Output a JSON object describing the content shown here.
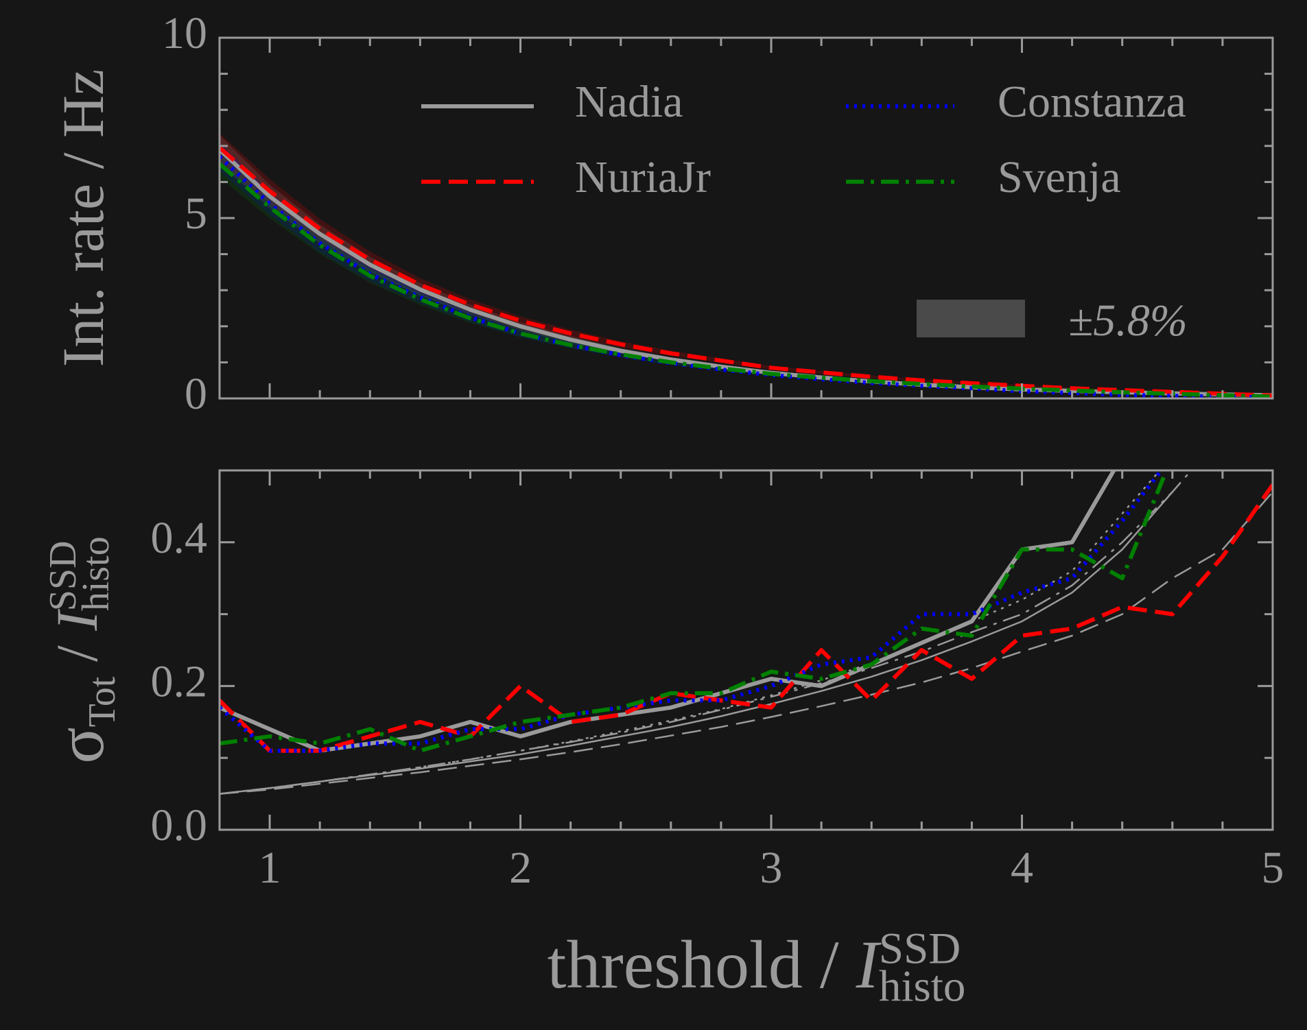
{
  "chart_data": [
    {
      "type": "line",
      "ylabel": "Int. rate / Hz",
      "x": [
        0.8,
        1.0,
        1.2,
        1.4,
        1.6,
        1.8,
        2.0,
        2.2,
        2.4,
        2.6,
        2.8,
        3.0,
        3.2,
        3.4,
        3.6,
        3.8,
        4.0,
        4.2,
        4.4,
        4.6,
        4.8,
        5.0
      ],
      "series": [
        {
          "name": "Nadia",
          "color": "#9a9a9a",
          "dash": "solid",
          "values": [
            6.9,
            5.6,
            4.56,
            3.71,
            3.02,
            2.46,
            2.0,
            1.63,
            1.32,
            1.08,
            0.88,
            0.71,
            0.58,
            0.47,
            0.38,
            0.31,
            0.25,
            0.21,
            0.17,
            0.14,
            0.11,
            0.09
          ]
        },
        {
          "name": "NuriaJr",
          "color": "#ff0000",
          "dash": "dashed",
          "values": [
            6.95,
            5.75,
            4.7,
            3.85,
            3.15,
            2.6,
            2.15,
            1.8,
            1.5,
            1.25,
            1.05,
            0.85,
            0.72,
            0.6,
            0.5,
            0.42,
            0.35,
            0.28,
            0.23,
            0.18,
            0.13,
            0.08
          ]
        },
        {
          "name": "Constanza",
          "color": "#0000ff",
          "dash": "dotted",
          "values": [
            6.7,
            5.4,
            4.3,
            3.45,
            2.8,
            2.25,
            1.8,
            1.48,
            1.2,
            0.98,
            0.8,
            0.65,
            0.53,
            0.43,
            0.35,
            0.28,
            0.2,
            0.15,
            0.1,
            0.07,
            0.05,
            0.03
          ]
        },
        {
          "name": "Svenja",
          "color": "#008000",
          "dash": "dashdot",
          "values": [
            6.5,
            5.3,
            4.25,
            3.4,
            2.75,
            2.22,
            1.8,
            1.48,
            1.22,
            1.0,
            0.83,
            0.68,
            0.57,
            0.48,
            0.4,
            0.33,
            0.27,
            0.22,
            0.17,
            0.13,
            0.09,
            0.05
          ]
        }
      ],
      "band": {
        "value": 5.8,
        "label": "±5.8%",
        "color": "#4a4a4a"
      },
      "xlim": [
        0.8,
        5
      ],
      "ylim": [
        0,
        10
      ],
      "xticks": [
        1,
        2,
        3,
        4,
        5
      ],
      "xtick_labels": false,
      "xminor_ticks": [
        1.2,
        1.4,
        1.6,
        1.8,
        2.2,
        2.4,
        2.6,
        2.8,
        3.2,
        3.4,
        3.6,
        3.8,
        4.2,
        4.4,
        4.6,
        4.8
      ],
      "yticks": [
        0,
        5,
        10
      ],
      "yminor_ticks": [
        1,
        2,
        3,
        4,
        6,
        7,
        8,
        9
      ],
      "legend": "upper right"
    },
    {
      "type": "line",
      "ylabel": {
        "symbol": "σ",
        "symbol_sub": "Tot",
        "text": " / ",
        "var": "I",
        "sub": "histo",
        "sup": "SSD"
      },
      "xlabel": {
        "text": "threshold / ",
        "var": "I",
        "sub": "histo",
        "sup": "SSD"
      },
      "x": [
        0.8,
        1.0,
        1.2,
        1.4,
        1.6,
        1.8,
        2.0,
        2.2,
        2.4,
        2.6,
        2.8,
        3.0,
        3.2,
        3.4,
        3.6,
        3.8,
        4.0,
        4.2,
        4.4,
        4.6,
        4.8,
        5.0
      ],
      "series": [
        {
          "name": "Nadia",
          "color": "#9a9a9a",
          "dash": "solid",
          "values": [
            0.17,
            0.14,
            0.11,
            0.12,
            0.13,
            0.15,
            0.13,
            0.15,
            0.16,
            0.17,
            0.19,
            0.21,
            0.2,
            0.23,
            0.26,
            0.29,
            0.39,
            0.4,
            0.52,
            null,
            null,
            null
          ]
        },
        {
          "name": "NuriaJr",
          "color": "#ff0000",
          "dash": "dashed",
          "values": [
            0.18,
            0.11,
            0.11,
            0.13,
            0.15,
            0.13,
            0.2,
            0.15,
            0.16,
            0.19,
            0.18,
            0.17,
            0.25,
            0.18,
            0.25,
            0.21,
            0.27,
            0.28,
            0.31,
            0.3,
            0.38,
            0.48
          ]
        },
        {
          "name": "Constanza",
          "color": "#0000ff",
          "dash": "dotted",
          "values": [
            0.17,
            0.11,
            0.11,
            0.12,
            0.12,
            0.14,
            0.14,
            0.16,
            0.17,
            0.18,
            0.18,
            0.2,
            0.23,
            0.24,
            0.3,
            0.3,
            0.33,
            0.35,
            0.43,
            0.52,
            null,
            null
          ]
        },
        {
          "name": "Svenja",
          "color": "#008000",
          "dash": "dashdot",
          "values": [
            0.12,
            0.13,
            0.12,
            0.14,
            0.11,
            0.13,
            0.15,
            0.16,
            0.17,
            0.19,
            0.19,
            0.22,
            0.21,
            0.23,
            0.28,
            0.27,
            0.39,
            0.39,
            0.35,
            0.52,
            null,
            null
          ]
        }
      ],
      "reference_series": [
        {
          "color": "#9a9a9a",
          "dash": "solid",
          "values": [
            0.05,
            0.058,
            0.067,
            0.076,
            0.085,
            0.095,
            0.105,
            0.117,
            0.13,
            0.143,
            0.158,
            0.175,
            0.193,
            0.213,
            0.236,
            0.262,
            0.29,
            0.33,
            0.39,
            0.47,
            null,
            null
          ]
        },
        {
          "color": "#9a9a9a",
          "dash": "dashed",
          "values": [
            0.05,
            0.056,
            0.064,
            0.072,
            0.08,
            0.089,
            0.098,
            0.108,
            0.119,
            0.131,
            0.143,
            0.157,
            0.172,
            0.188,
            0.205,
            0.225,
            0.248,
            0.27,
            0.3,
            0.35,
            0.39,
            0.47
          ]
        },
        {
          "color": "#9a9a9a",
          "dash": "dotted",
          "values": [
            0.05,
            0.058,
            0.067,
            0.077,
            0.087,
            0.098,
            0.11,
            0.123,
            0.137,
            0.152,
            0.168,
            0.187,
            0.208,
            0.232,
            0.26,
            0.29,
            0.32,
            0.36,
            0.44,
            0.52,
            null,
            null
          ]
        },
        {
          "color": "#9a9a9a",
          "dash": "dashdot",
          "values": [
            0.05,
            0.058,
            0.067,
            0.077,
            0.087,
            0.098,
            0.11,
            0.122,
            0.135,
            0.15,
            0.167,
            0.185,
            0.204,
            0.225,
            0.248,
            0.275,
            0.3,
            0.34,
            0.4,
            0.47,
            0.55,
            null
          ]
        }
      ],
      "xlim": [
        0.8,
        5
      ],
      "ylim": [
        0,
        0.5
      ],
      "xticks": [
        1,
        2,
        3,
        4,
        5
      ],
      "xtick_labels": true,
      "xminor_ticks": [
        1.2,
        1.4,
        1.6,
        1.8,
        2.2,
        2.4,
        2.6,
        2.8,
        3.2,
        3.4,
        3.6,
        3.8,
        4.2,
        4.4,
        4.6,
        4.8
      ],
      "yticks": [
        {
          "value": 0,
          "label": "0.0"
        },
        0.2,
        0.4
      ],
      "yminor_ticks": [
        0.1,
        0.3
      ]
    }
  ]
}
